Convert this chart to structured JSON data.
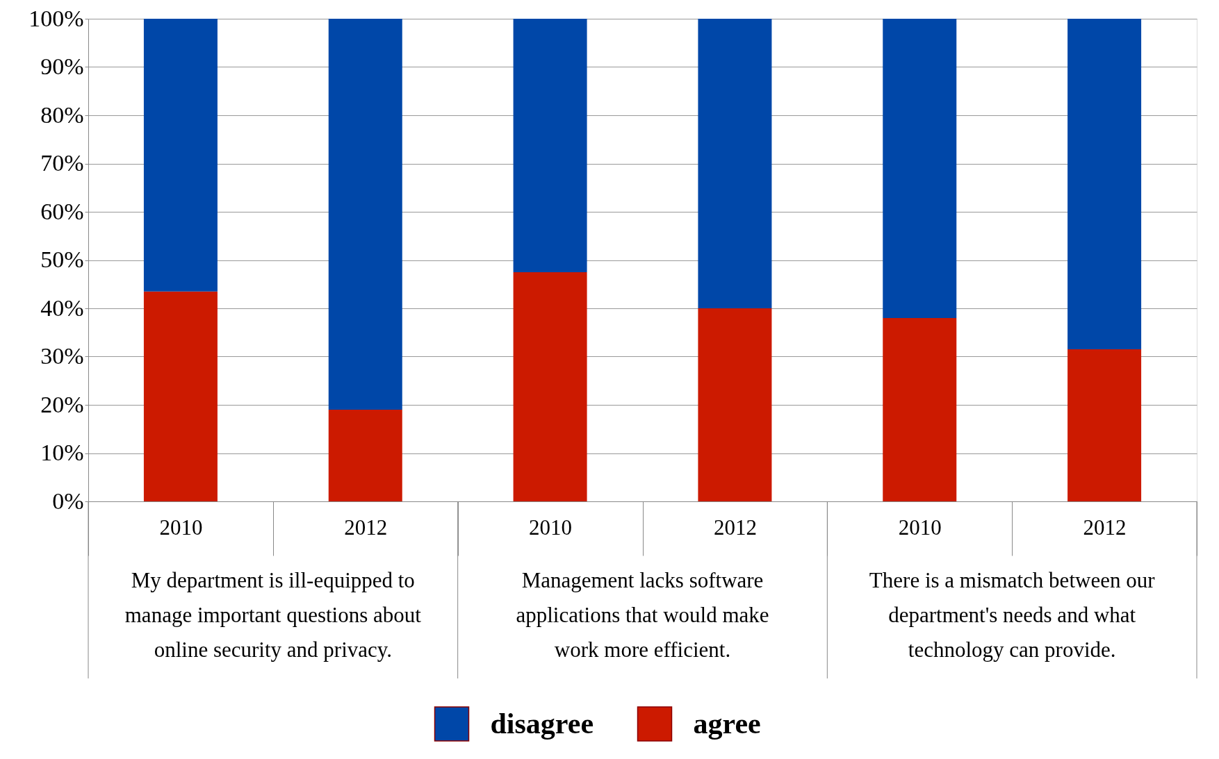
{
  "chart_data": {
    "type": "bar",
    "stacked": true,
    "categories": [
      "2010",
      "2012",
      "2010",
      "2012",
      "2010",
      "2012"
    ],
    "series": [
      {
        "name": "agree",
        "color": "#cc1a00",
        "values": [
          43.5,
          19,
          47.5,
          40,
          38,
          31.5
        ]
      },
      {
        "name": "disagree",
        "color": "#0047a8",
        "values": [
          56.5,
          81,
          52.5,
          60,
          62,
          68.5
        ]
      }
    ],
    "annotations": [
      "My department is ill-equipped to manage important questions about online security and privacy.",
      "Management lacks software applications that would make work more efficient.",
      "There is a mismatch between our department's needs and what technology can provide."
    ],
    "ylim": [
      0,
      100
    ],
    "yticks": [
      {
        "value": 0,
        "label": "0%"
      },
      {
        "value": 10,
        "label": "10%"
      },
      {
        "value": 20,
        "label": "20%"
      },
      {
        "value": 30,
        "label": "30%"
      },
      {
        "value": 40,
        "label": "40%"
      },
      {
        "value": 50,
        "label": "50%"
      },
      {
        "value": 60,
        "label": "60%"
      },
      {
        "value": 70,
        "label": "70%"
      },
      {
        "value": 80,
        "label": "80%"
      },
      {
        "value": 90,
        "label": "90%"
      },
      {
        "value": 100,
        "label": "100%"
      }
    ],
    "grid": "y",
    "legend": "bottom"
  }
}
